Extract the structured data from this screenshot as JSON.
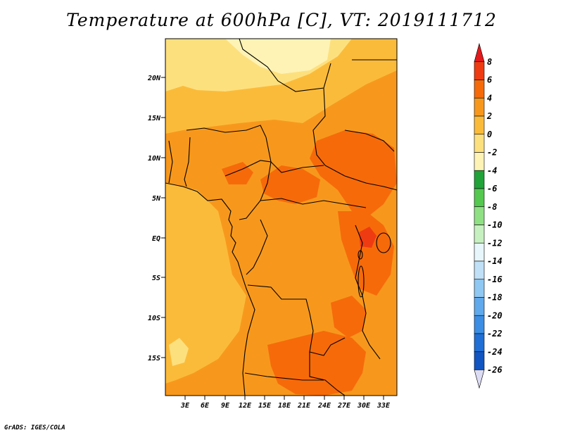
{
  "title": "Temperature at 600hPa [C], VT: 2019111712",
  "footer": "GrADS: IGES/COLA",
  "map": {
    "lat_ticks": [
      "20N",
      "15N",
      "10N",
      "5N",
      "EQ",
      "5S",
      "10S",
      "15S"
    ],
    "lon_ticks": [
      "3E",
      "6E",
      "9E",
      "12E",
      "15E",
      "18E",
      "21E",
      "24E",
      "27E",
      "30E",
      "33E"
    ]
  },
  "colorbar": {
    "levels": [
      "8",
      "6",
      "4",
      "2",
      "0",
      "-2",
      "-4",
      "-6",
      "-8",
      "-10",
      "-12",
      "-14",
      "-16",
      "-18",
      "-20",
      "-22",
      "-24",
      "-26"
    ],
    "colors": [
      "#e31a1c",
      "#ef3b11",
      "#f66a0a",
      "#f7981c",
      "#fbbb3a",
      "#fde07e",
      "#fef3b5",
      "#21a33a",
      "#54c84f",
      "#8fe083",
      "#c7f0c0",
      "#e6f6fb",
      "#bfe0f7",
      "#8fc8f2",
      "#5fa9ec",
      "#3b8ee4",
      "#1f6fd6",
      "#1055c2",
      "#073e9c",
      "#0a1d6e",
      "#dcdcf5"
    ]
  },
  "chart_data": {
    "type": "heatmap",
    "title": "Temperature at 600hPa [C], VT: 2019111712",
    "variable": "Temperature at 600hPa",
    "units": "C",
    "valid_time": "2019111712",
    "lon_range": [
      0,
      35
    ],
    "lat_range": [
      -20,
      25
    ],
    "contour_levels": [
      -26,
      -24,
      -22,
      -20,
      -18,
      -16,
      -14,
      -12,
      -10,
      -8,
      -6,
      -4,
      -2,
      0,
      2,
      4,
      6,
      8
    ],
    "colorbar_placement": "right"
  }
}
